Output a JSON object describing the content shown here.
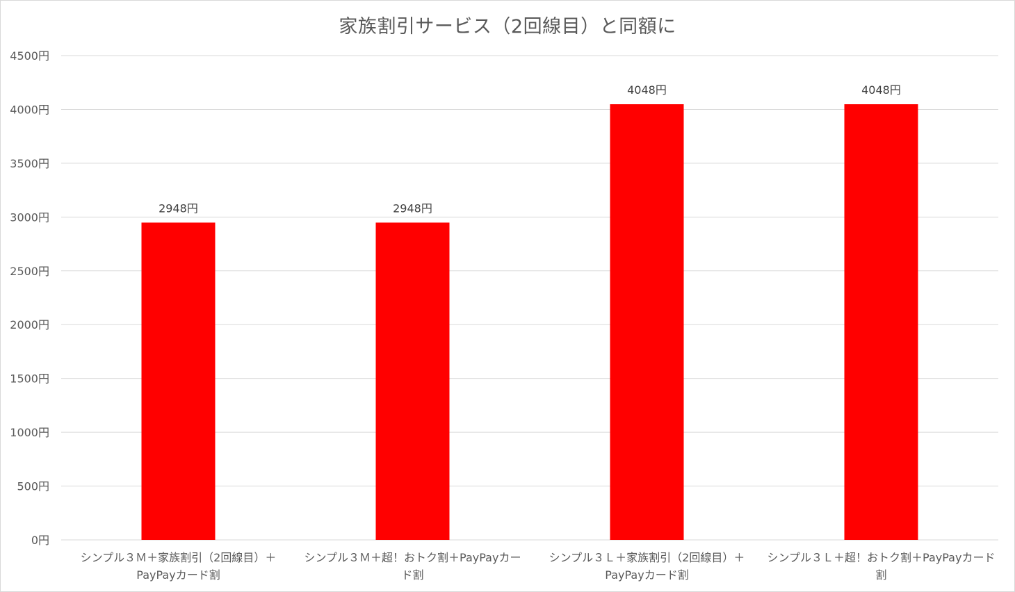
{
  "chart_data": {
    "type": "bar",
    "title": "家族割引サービス（2回線目）と同額に",
    "categories": [
      [
        "シンプル３Ｍ＋家族割引（2回線目）＋",
        "PayPayカード割"
      ],
      [
        "シンプル３Ｍ＋超！おトク割＋PayPayカー",
        "ド割"
      ],
      [
        "シンプル３Ｌ＋家族割引（2回線目）＋",
        "PayPayカード割"
      ],
      [
        "シンプル３Ｌ＋超！おトク割＋PayPayカード",
        "割"
      ]
    ],
    "values": [
      2948,
      2948,
      4048,
      4048
    ],
    "data_labels": [
      "2948円",
      "2948円",
      "4048円",
      "4048円"
    ],
    "yticks": [
      "0円",
      "500円",
      "1000円",
      "1500円",
      "2000円",
      "2500円",
      "3000円",
      "3500円",
      "4000円",
      "4500円"
    ],
    "ylim": [
      0,
      4500
    ],
    "grid": true,
    "bar_color": "#ff0000",
    "grid_color": "#d9d9d9"
  }
}
